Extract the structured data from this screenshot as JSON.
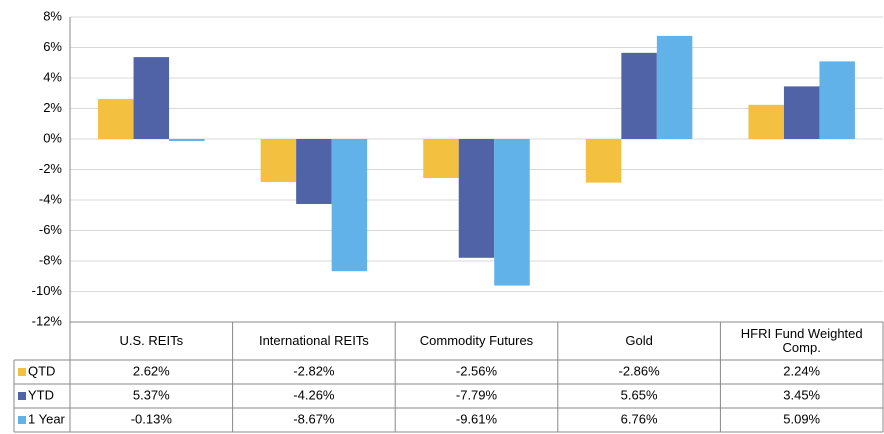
{
  "chart_data": {
    "type": "bar",
    "categories": [
      "U.S. REITs",
      "International REITs",
      "Commodity Futures",
      "Gold",
      "HFRI Fund Weighted Comp."
    ],
    "series": [
      {
        "name": "QTD",
        "color": "#f3c040",
        "values": [
          2.62,
          -2.82,
          -2.56,
          -2.86,
          2.24
        ],
        "value_labels": [
          "2.62%",
          "-2.82%",
          "-2.56%",
          "-2.86%",
          "2.24%"
        ]
      },
      {
        "name": "YTD",
        "color": "#4f63a6",
        "values": [
          5.37,
          -4.26,
          -7.79,
          5.65,
          3.45
        ],
        "value_labels": [
          "5.37%",
          "-4.26%",
          "-7.79%",
          "5.65%",
          "3.45%"
        ]
      },
      {
        "name": "1 Year",
        "color": "#62b2ea",
        "values": [
          -0.13,
          -8.67,
          -9.61,
          6.76,
          5.09
        ],
        "value_labels": [
          "-0.13%",
          "-8.67%",
          "-9.61%",
          "6.76%",
          "5.09%"
        ]
      }
    ],
    "ylim": [
      -12,
      8
    ],
    "yticks": [
      {
        "value": -12,
        "label": "-12%"
      },
      {
        "value": -10,
        "label": "-10%"
      },
      {
        "value": -8,
        "label": "-8%"
      },
      {
        "value": -6,
        "label": "-6%"
      },
      {
        "value": -4,
        "label": "-4%"
      },
      {
        "value": -2,
        "label": "-2%"
      },
      {
        "value": 0,
        "label": "0%"
      },
      {
        "value": 2,
        "label": "2%"
      },
      {
        "value": 4,
        "label": "4%"
      },
      {
        "value": 6,
        "label": "6%"
      },
      {
        "value": 8,
        "label": "8%"
      }
    ],
    "grid": true
  }
}
